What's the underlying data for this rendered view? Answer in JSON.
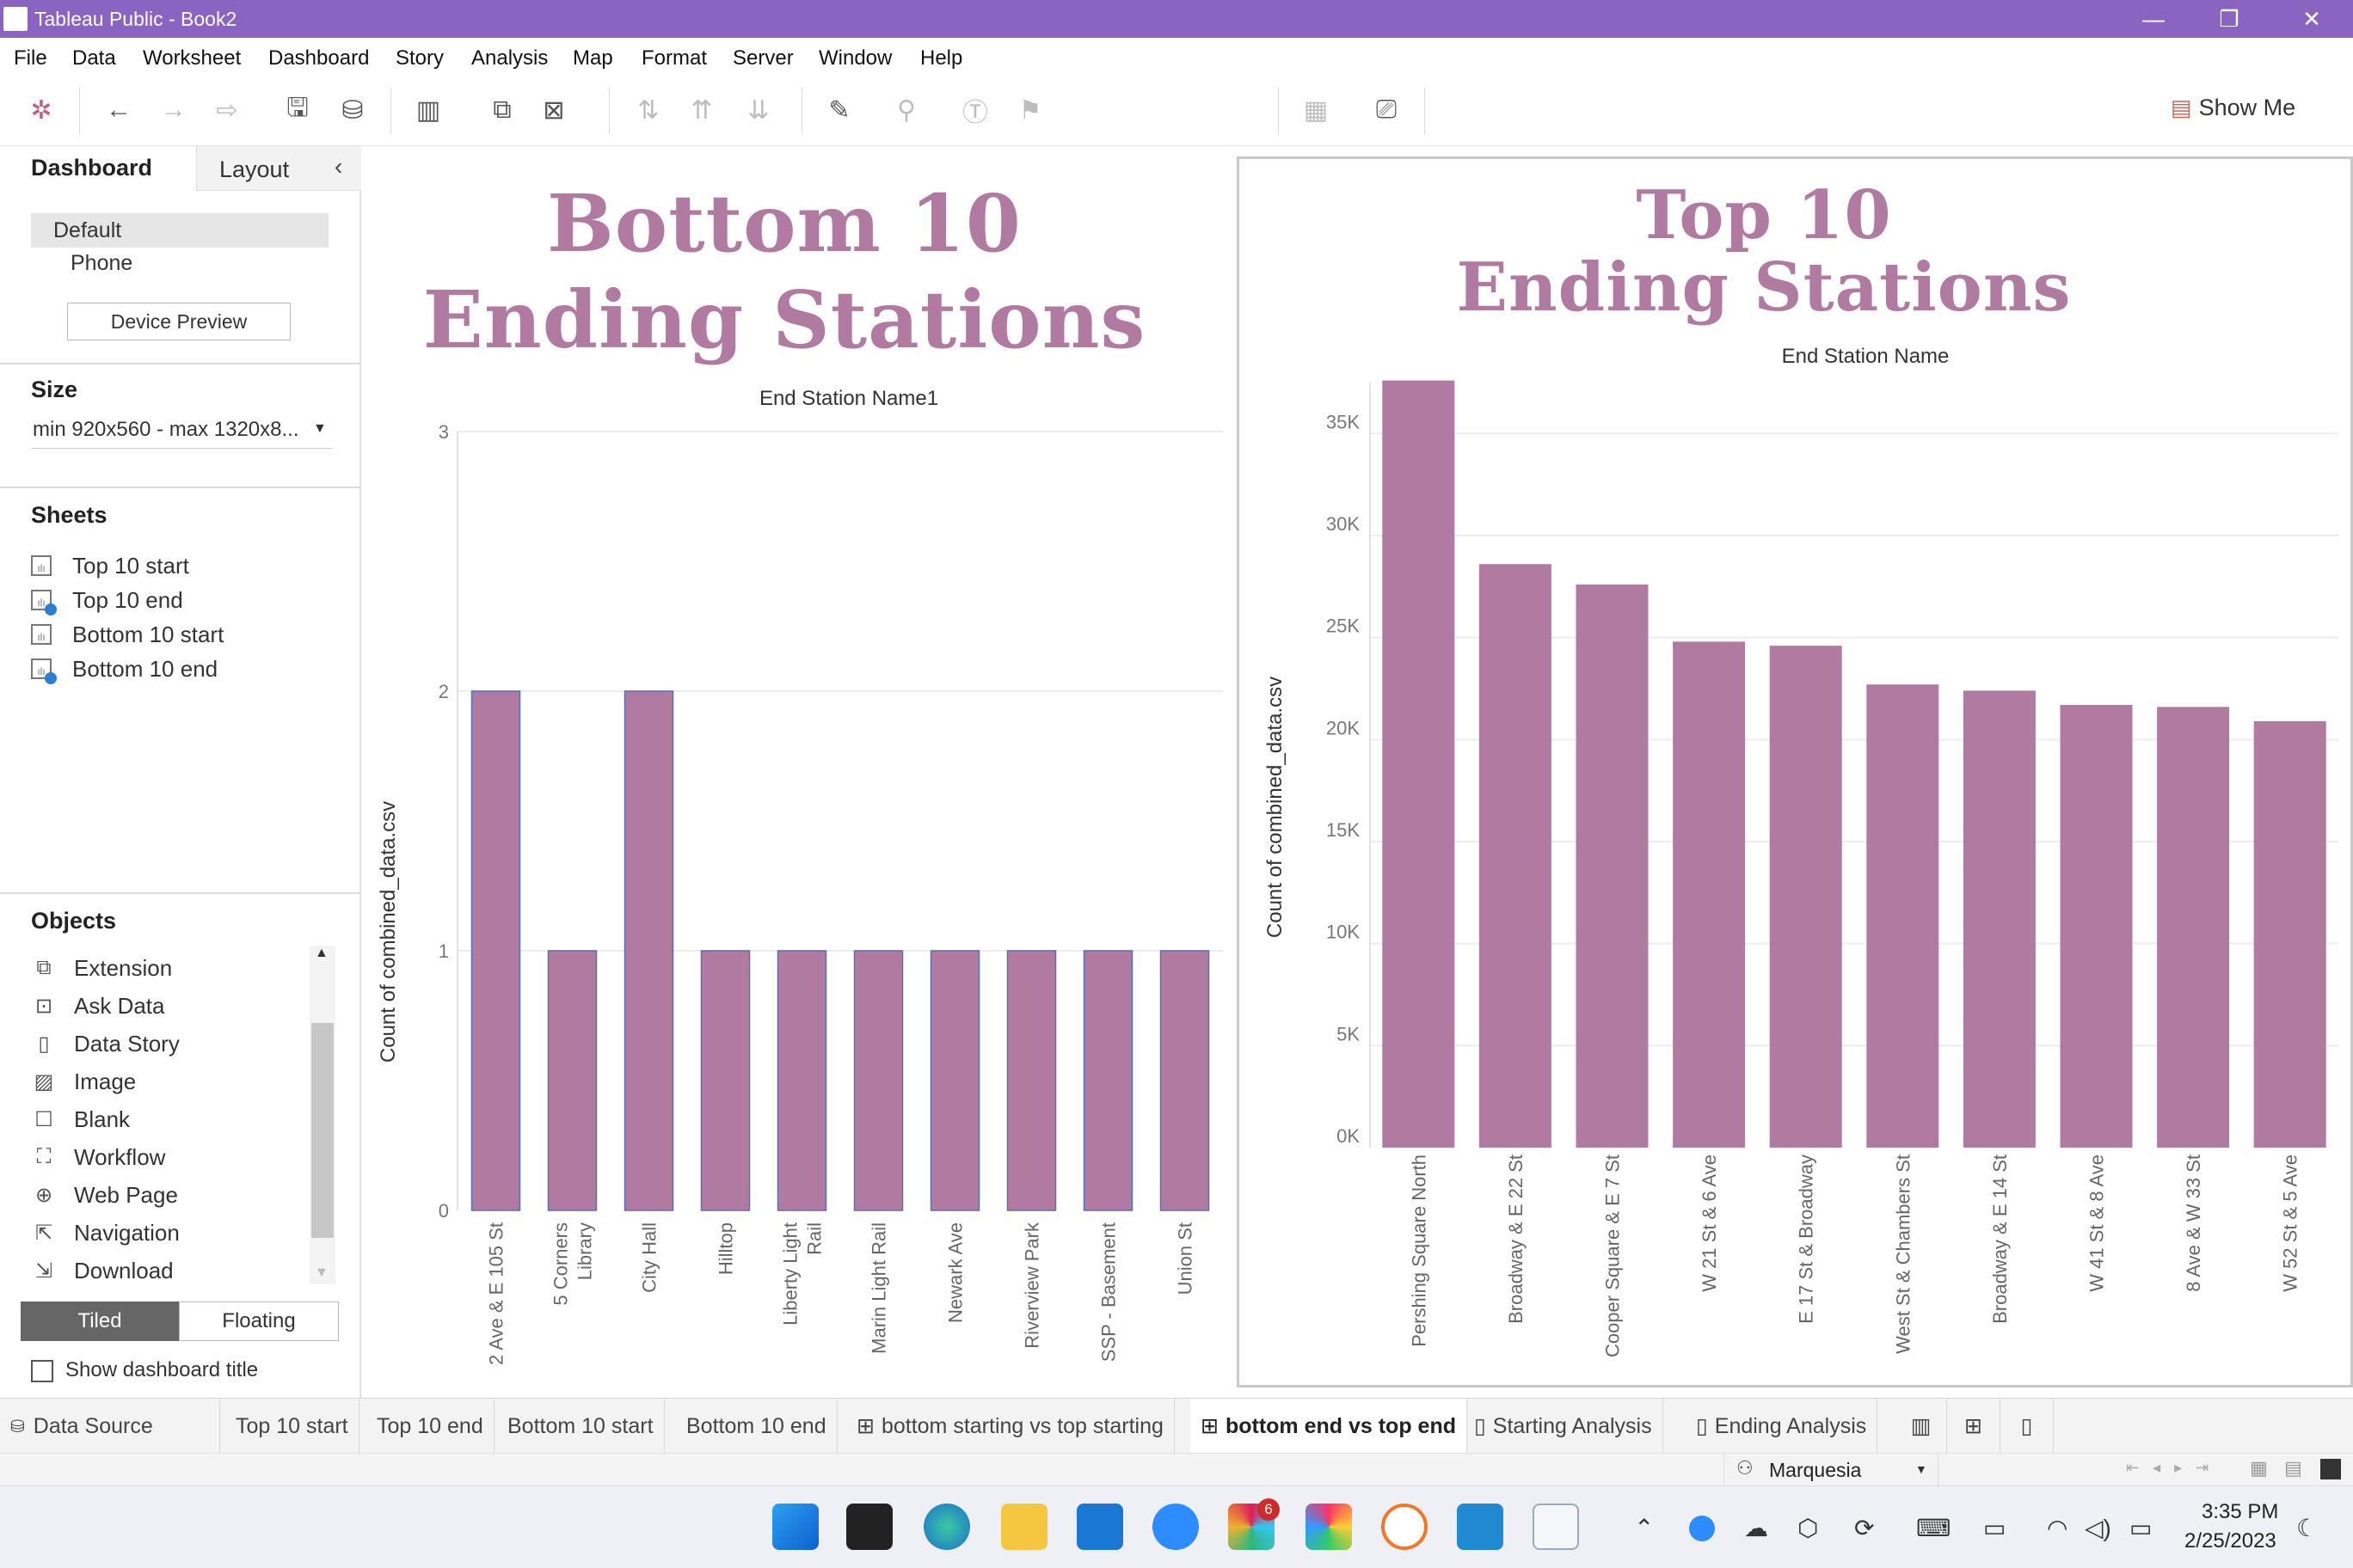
{
  "window": {
    "title": "Tableau Public - Book2"
  },
  "menu": [
    "File",
    "Data",
    "Worksheet",
    "Dashboard",
    "Story",
    "Analysis",
    "Map",
    "Format",
    "Server",
    "Window",
    "Help"
  ],
  "toolbar": {
    "show_me": "Show Me"
  },
  "left_panel": {
    "tab_dashboard": "Dashboard",
    "tab_layout": "Layout",
    "device_default": "Default",
    "device_phone": "Phone",
    "device_preview": "Device Preview",
    "size_heading": "Size",
    "size_value": "min 920x560 - max 1320x8...",
    "sheets_heading": "Sheets",
    "sheets": [
      "Top 10 start",
      "Top 10 end",
      "Bottom 10 start",
      "Bottom 10 end"
    ],
    "objects_heading": "Objects",
    "objects": [
      "Extension",
      "Ask Data",
      "Data Story",
      "Image",
      "Blank",
      "Workflow",
      "Web Page",
      "Navigation",
      "Download"
    ],
    "tiled": "Tiled",
    "floating": "Floating",
    "show_title": "Show dashboard title"
  },
  "chart_data": [
    {
      "type": "bar",
      "title": "Bottom 10\nEnding Stations",
      "xlabel": "End Station Name1",
      "ylabel": "Count of combined_data.csv",
      "ylim": [
        0,
        3
      ],
      "yticks": [
        "0",
        "1",
        "2",
        "3"
      ],
      "categories": [
        "2 Ave & E 105 St",
        "5 Corners\nLibrary",
        "City Hall",
        "Hilltop",
        "Liberty Light\nRail",
        "Marin Light Rail",
        "Newark Ave",
        "Riverview Park",
        "SSP - Basement",
        "Union St"
      ],
      "values": [
        2,
        1,
        2,
        1,
        1,
        1,
        1,
        1,
        1,
        1
      ],
      "color": "#b07aa1",
      "grid": true
    },
    {
      "type": "bar",
      "title": "Top 10\nEnding Stations",
      "xlabel": "End Station Name",
      "ylabel": "Count of combined_data.csv",
      "ylim": [
        0,
        37500
      ],
      "yticks": [
        "0K",
        "5K",
        "10K",
        "15K",
        "20K",
        "25K",
        "30K",
        "35K"
      ],
      "categories": [
        "Pershing Square North",
        "Broadway & E 22 St",
        "Cooper Square & E 7 St",
        "W 21 St & 6 Ave",
        "E 17 St & Broadway",
        "West St & Chambers St",
        "Broadway & E 14 St",
        "W 41 St & 8 Ave",
        "8 Ave & W 33 St",
        "W 52 St & 5 Ave"
      ],
      "values": [
        37600,
        28600,
        27600,
        24800,
        24600,
        22700,
        22400,
        21700,
        21600,
        20900
      ],
      "color": "#b07aa1",
      "grid": true
    }
  ],
  "tabs": [
    "Data Source",
    "Top 10 start",
    "Top 10 end",
    "Bottom 10 start",
    "Bottom 10 end",
    "bottom starting vs top starting",
    "bottom end vs top end",
    "Starting Analysis",
    "Ending Analysis"
  ],
  "status": {
    "user": "Marquesia"
  },
  "taskbar": {
    "time": "3:35 PM",
    "date": "2/25/2023",
    "badge": "6"
  }
}
